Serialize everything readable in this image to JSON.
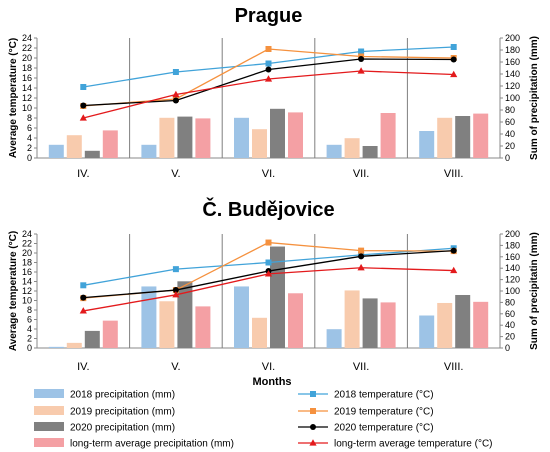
{
  "colors": {
    "p2018": "#9DC3E6",
    "p2019": "#F8CBAD",
    "p2020": "#808080",
    "plt": "#F4A0A4",
    "t2018": "#41A3D9",
    "t2019": "#F5913E",
    "t2020": "#000000",
    "tlt": "#E31A1C"
  },
  "xlabel": "Months",
  "legend": {
    "p2018": "2018 precipitation (mm)",
    "p2019": "2019 precipitation (mm)",
    "p2020": "2020 precipitation (mm)",
    "plt": "long-term average precipitation (mm)",
    "t2018": "2018 temperature (°C)",
    "t2019": "2019  temperature (°C)",
    "t2020": "2020 temperature (°C)",
    "tlt": "long-term average temperature (°C)"
  },
  "chart_data": [
    {
      "type": "bar",
      "title": "Prague",
      "categories": [
        "IV.",
        "V.",
        "VI.",
        "VII.",
        "VIII."
      ],
      "ylabel": "Average temperature (°C)",
      "y2label": "Sum of precipitation (mm)",
      "ylim": [
        0,
        24
      ],
      "y2lim": [
        0,
        200
      ],
      "yticks": [
        "0",
        "2",
        "4",
        "6",
        "8",
        "10",
        "12",
        "14",
        "16",
        "18",
        "20",
        "22",
        "24"
      ],
      "y2ticks": [
        "0",
        "20",
        "40",
        "60",
        "80",
        "100",
        "120",
        "140",
        "160",
        "180",
        "200"
      ],
      "precipitation": [
        {
          "name": "2018 precipitation (mm)",
          "values": [
            22,
            22,
            67,
            22,
            45
          ]
        },
        {
          "name": "2019 precipitation (mm)",
          "values": [
            38,
            67,
            48,
            33,
            67
          ]
        },
        {
          "name": "2020 precipitation (mm)",
          "values": [
            12,
            69,
            82,
            20,
            70
          ]
        },
        {
          "name": "long-term average precipitation (mm)",
          "values": [
            46,
            66,
            76,
            75,
            74
          ]
        }
      ],
      "temperature": [
        {
          "name": "2018 temperature (°C)",
          "values": [
            14.2,
            17.2,
            18.9,
            21.3,
            22.2
          ]
        },
        {
          "name": "2019  temperature (°C)",
          "values": [
            10.4,
            11.8,
            21.8,
            20.3,
            20.0
          ]
        },
        {
          "name": "2020 temperature (°C)",
          "values": [
            10.5,
            11.5,
            17.7,
            19.8,
            19.7
          ]
        },
        {
          "name": "long-term average temperature (°C)",
          "values": [
            8.0,
            12.7,
            15.8,
            17.4,
            16.7
          ]
        }
      ]
    },
    {
      "type": "bar",
      "title": "Č. Budějovice",
      "categories": [
        "IV.",
        "V.",
        "VI.",
        "VII.",
        "VIII."
      ],
      "ylabel": "Average temperature (°C)",
      "y2label": "Sum of precipitatin (mm)",
      "ylim": [
        0,
        24
      ],
      "y2lim": [
        0,
        200
      ],
      "yticks": [
        "0",
        "2",
        "4",
        "6",
        "8",
        "10",
        "12",
        "14",
        "16",
        "18",
        "20",
        "22",
        "24"
      ],
      "y2ticks": [
        "0",
        "20",
        "40",
        "60",
        "80",
        "100",
        "120",
        "140",
        "160",
        "180",
        "200"
      ],
      "precipitation": [
        {
          "name": "2018 precipitation (mm)",
          "values": [
            2,
            108,
            108,
            33,
            57
          ]
        },
        {
          "name": "2019 precipitation (mm)",
          "values": [
            9,
            82,
            53,
            101,
            79
          ]
        },
        {
          "name": "2020 precipitation (mm)",
          "values": [
            30,
            117,
            178,
            87,
            93
          ]
        },
        {
          "name": "long-term average precipitation (mm)",
          "values": [
            48,
            73,
            96,
            80,
            81
          ]
        }
      ],
      "temperature": [
        {
          "name": "2018 temperature (°C)",
          "values": [
            13.2,
            16.6,
            18.0,
            19.6,
            21.0
          ]
        },
        {
          "name": "2019  temperature (°C)",
          "values": [
            10.5,
            12.2,
            22.2,
            20.5,
            20.4
          ]
        },
        {
          "name": "2020 temperature (°C)",
          "values": [
            10.6,
            12.2,
            16.2,
            19.3,
            20.5
          ]
        },
        {
          "name": "long-term average temperature (°C)",
          "values": [
            7.8,
            11.2,
            15.6,
            16.9,
            16.3
          ]
        }
      ]
    }
  ]
}
